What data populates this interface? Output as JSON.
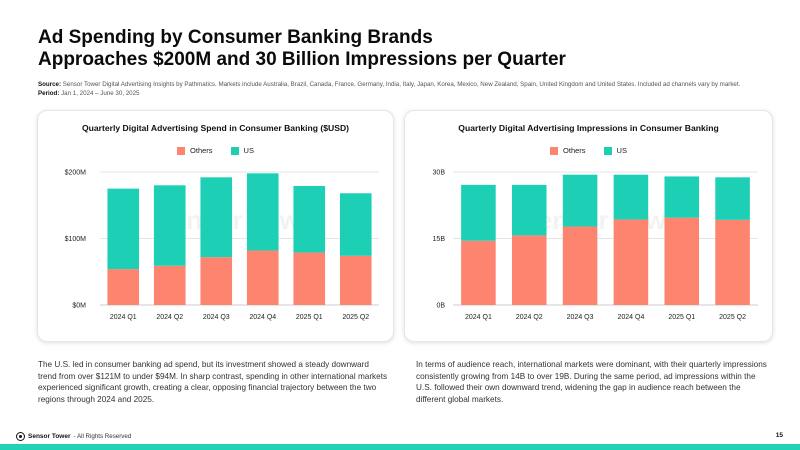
{
  "header": {
    "title_line1": "Ad Spending by Consumer Banking Brands",
    "title_line2": "Approaches $200M and 30 Billion Impressions per Quarter",
    "source_label": "Source:",
    "source_text": "Sensor Tower Digital Advertising Insights by Pathmatics. Markets include Australia, Brazil, Canada, France, Germany, India, Italy, Japan, Korea, Mexico, New Zealand, Spain, United Kingdom and United States. Included ad channels vary by market.",
    "period_label": "Period:",
    "period_text": "Jan 1, 2024 – June 30, 2025"
  },
  "colors": {
    "others": "#fd846f",
    "us": "#1dd0b5",
    "grid": "#dcdcdc",
    "accent_bar": "#1fd3b4"
  },
  "watermark": {
    "text": "Sensor Tower"
  },
  "chart_data": [
    {
      "type": "bar",
      "stacked": true,
      "title": "Quarterly Digital Advertising Spend in Consumer Banking ($USD)",
      "categories": [
        "2024 Q1",
        "2024 Q2",
        "2024 Q3",
        "2024 Q4",
        "2025 Q1",
        "2025 Q2"
      ],
      "series": [
        {
          "name": "Others",
          "values": [
            54,
            59,
            72,
            82,
            79,
            74
          ]
        },
        {
          "name": "US",
          "values": [
            121,
            121,
            120,
            116,
            100,
            94
          ]
        }
      ],
      "ylim": [
        0,
        200
      ],
      "yticks": [
        0,
        100,
        200
      ],
      "ytick_labels": [
        "$0M",
        "$100M",
        "$200M"
      ],
      "legend": "top-center",
      "grid": true
    },
    {
      "type": "bar",
      "stacked": true,
      "title": "Quarterly Digital Advertising Impressions in Consumer Banking",
      "categories": [
        "2024 Q1",
        "2024 Q2",
        "2024 Q3",
        "2024 Q4",
        "2025 Q1",
        "2025 Q2"
      ],
      "series": [
        {
          "name": "Others",
          "values": [
            14.5,
            15.7,
            17.7,
            19.3,
            19.7,
            19.2
          ]
        },
        {
          "name": "US",
          "values": [
            12.6,
            11.4,
            11.7,
            10.1,
            9.3,
            9.6
          ]
        }
      ],
      "ylim": [
        0,
        30
      ],
      "yticks": [
        0,
        15,
        30
      ],
      "ytick_labels": [
        "0B",
        "15B",
        "30B"
      ],
      "legend": "top-center",
      "grid": true
    }
  ],
  "body": {
    "left_text": "The U.S. led in consumer banking ad spend, but its investment showed a steady downward trend from over $121M to under $94M. In sharp contrast, spending in other international markets experienced significant growth, creating a clear, opposing financial trajectory between the two regions through 2024 and 2025.",
    "right_text": "In terms of audience reach, international markets were dominant, with their quarterly impressions consistently growing from 14B to over 19B. During the same period, ad impressions within the U.S. followed their own downward trend, widening the gap in audience reach between the different global markets."
  },
  "footer": {
    "brand": "Sensor Tower",
    "rights": "- All Rights Reserved",
    "page_number": "15"
  }
}
